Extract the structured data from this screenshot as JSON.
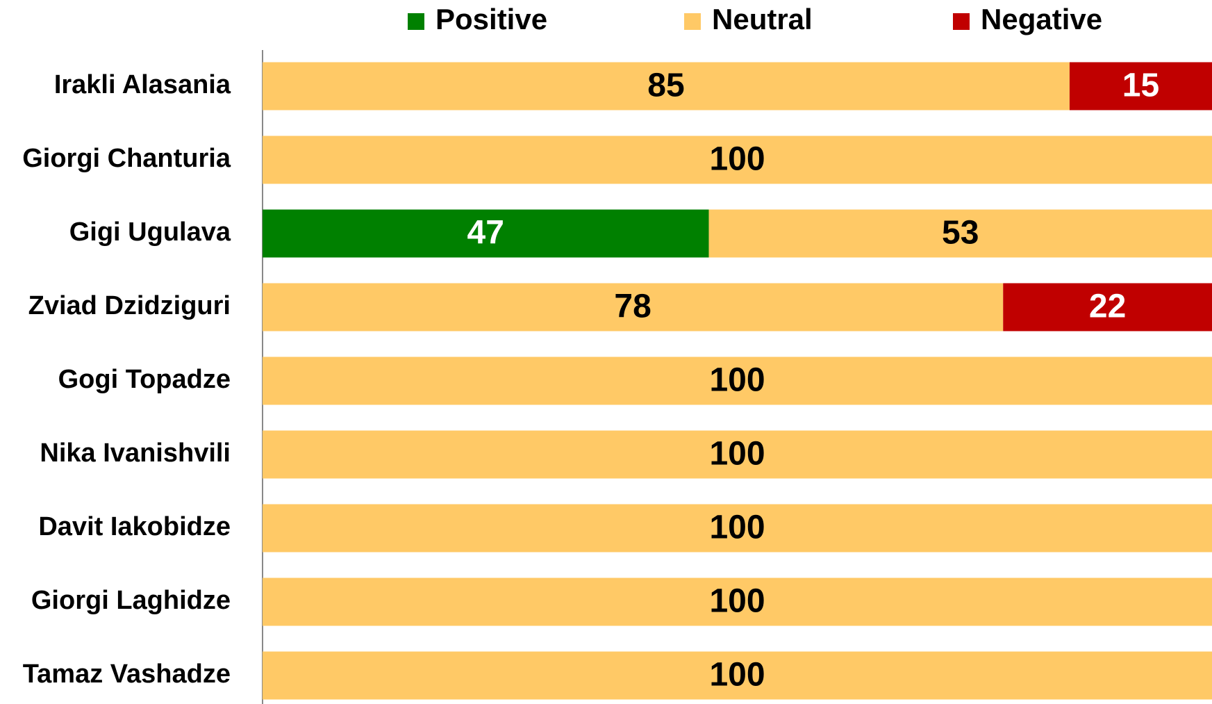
{
  "chart_data": {
    "type": "stacked-barh",
    "categories": [
      "Irakli Alasania",
      "Giorgi Chanturia",
      "Gigi Ugulava",
      "Zviad Dzidziguri",
      "Gogi Topadze",
      "Nika Ivanishvili",
      "Davit Iakobidze",
      "Giorgi Laghidze",
      "Tamaz Vashadze"
    ],
    "series": [
      {
        "name": "Positive",
        "color": "#008000",
        "label_color": "#ffffff",
        "values": [
          null,
          null,
          47,
          null,
          null,
          null,
          null,
          null,
          null
        ]
      },
      {
        "name": "Neutral",
        "color": "#ffc966",
        "label_color": "#000000",
        "values": [
          85,
          100,
          53,
          78,
          100,
          100,
          100,
          100,
          100
        ]
      },
      {
        "name": "Negative",
        "color": "#c00000",
        "label_color": "#ffffff",
        "values": [
          15,
          null,
          null,
          22,
          null,
          null,
          null,
          null,
          null
        ]
      }
    ],
    "xlim": [
      0,
      100
    ],
    "legend": "top"
  }
}
